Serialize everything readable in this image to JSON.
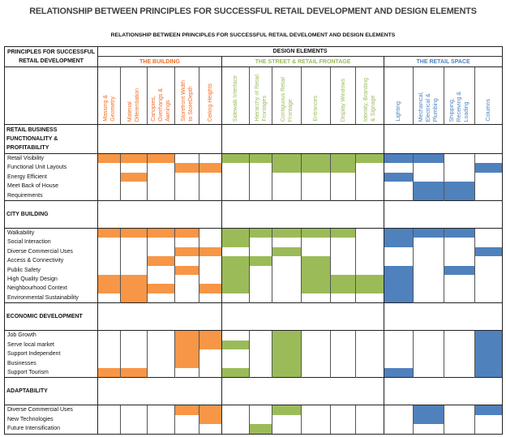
{
  "title": "RELATIONSHIP BETWEEN PRINCIPLES FOR SUCCESSFUL RETAIL DEVELOPMENT AND DESIGN ELEMENTS",
  "subtitle": "RELATIONSHIP BETWEEN PRINCIPLES FOR SUCCESSFUL RETAIL DEVELOMENT AND DESIGN ELEMENTS",
  "header": {
    "principles_line1": "PRINCIPLES FOR SUCCESSFUL",
    "principles_line2": "RETAIL DEVELOPMENT",
    "design_elements": "DESIGN ELEMENTS"
  },
  "groups": [
    {
      "name": "THE BUILDING",
      "text_color": "#F26B21",
      "fill_color": "#F79646",
      "elements": [
        "Massing &\nGeometry",
        "Material\nDiferentiation",
        "Canopies,\nOverhangs &\nAwnings",
        "Storefront Width\nto StoreDepth",
        "Ceiling Heights"
      ]
    },
    {
      "name": "THE STREET & RETAIL FRONTAGE",
      "text_color": "#9BBB59",
      "fill_color": "#9BBB59",
      "elements": [
        "Sidewalk Interface",
        "Hierarchy of Retail\nFrontages",
        "Contiguous Retail\nFrontage",
        "Entrances",
        "Display Windows",
        "Identity, Branding\n& Signage"
      ]
    },
    {
      "name": "THE RETAIL SPACE",
      "text_color": "#4F81BD",
      "fill_color": "#4F81BD",
      "elements": [
        "Lighting",
        "Mechanical,\nElectrical &\nPlumbing",
        "Shipping,\nReceiving &\nLoading",
        "Columns"
      ]
    }
  ],
  "sections": [
    {
      "title": "RETAIL BUSINESS\nFUNCTIONALITY &\nPROFITABILITY",
      "lines": [
        {
          "label": "Retail Visibility",
          "marks": [
            0,
            1,
            2,
            5,
            6,
            7,
            8,
            9,
            10,
            11,
            12
          ]
        },
        {
          "label": "Functional Unit Layouts",
          "marks": [
            3,
            4,
            7,
            8,
            9,
            14
          ]
        },
        {
          "label": "Energy Efficient",
          "marks": [
            1,
            11
          ]
        },
        {
          "label": "Meet Back of House",
          "marks": [
            12,
            13
          ]
        },
        {
          "label": "Requirements",
          "marks": [
            12,
            13
          ]
        }
      ]
    },
    {
      "title": "CITY BUILDING",
      "lines": [
        {
          "label": "Walkability",
          "marks": [
            0,
            1,
            2,
            3,
            5,
            6,
            7,
            8,
            9,
            11,
            12,
            13
          ]
        },
        {
          "label": "Social Interaction",
          "marks": [
            5,
            11
          ]
        },
        {
          "label": "Diverse Commercial Uses",
          "marks": [
            3,
            4,
            7,
            14
          ]
        },
        {
          "label": "Access & Connectivity",
          "marks": [
            2,
            5,
            6,
            8
          ]
        },
        {
          "label": "Public Safety",
          "marks": [
            3,
            5,
            8,
            11,
            13
          ]
        },
        {
          "label": "High Quality Design",
          "marks": [
            0,
            1,
            5,
            8,
            9,
            10,
            11
          ]
        },
        {
          "label": "Neighbourhood Context",
          "marks": [
            0,
            1,
            2,
            4,
            5,
            8,
            9,
            10,
            11
          ]
        },
        {
          "label": "Environmental Sustainability",
          "marks": [
            1,
            11
          ]
        }
      ]
    },
    {
      "title": "ECONOMIC DEVELOPMENT",
      "lines": [
        {
          "label": "Job Growth",
          "marks": [
            3,
            4,
            7,
            14
          ]
        },
        {
          "label": "Serve local market",
          "marks": [
            3,
            4,
            5,
            7,
            14
          ]
        },
        {
          "label": "Support Independent",
          "marks": [
            3,
            7,
            14
          ]
        },
        {
          "label": "Businesses",
          "marks": [
            3,
            7,
            14
          ]
        },
        {
          "label": "Support Tourism",
          "marks": [
            0,
            1,
            5,
            7,
            11,
            14
          ]
        }
      ]
    },
    {
      "title": "ADAPTABILITY",
      "lines": [
        {
          "label": "Diverse Commercial Uses",
          "marks": [
            3,
            4,
            7,
            12,
            14
          ]
        },
        {
          "label": "New Technologies",
          "marks": [
            4,
            12
          ]
        },
        {
          "label": "Future Intensification",
          "marks": [
            6
          ]
        }
      ]
    }
  ]
}
